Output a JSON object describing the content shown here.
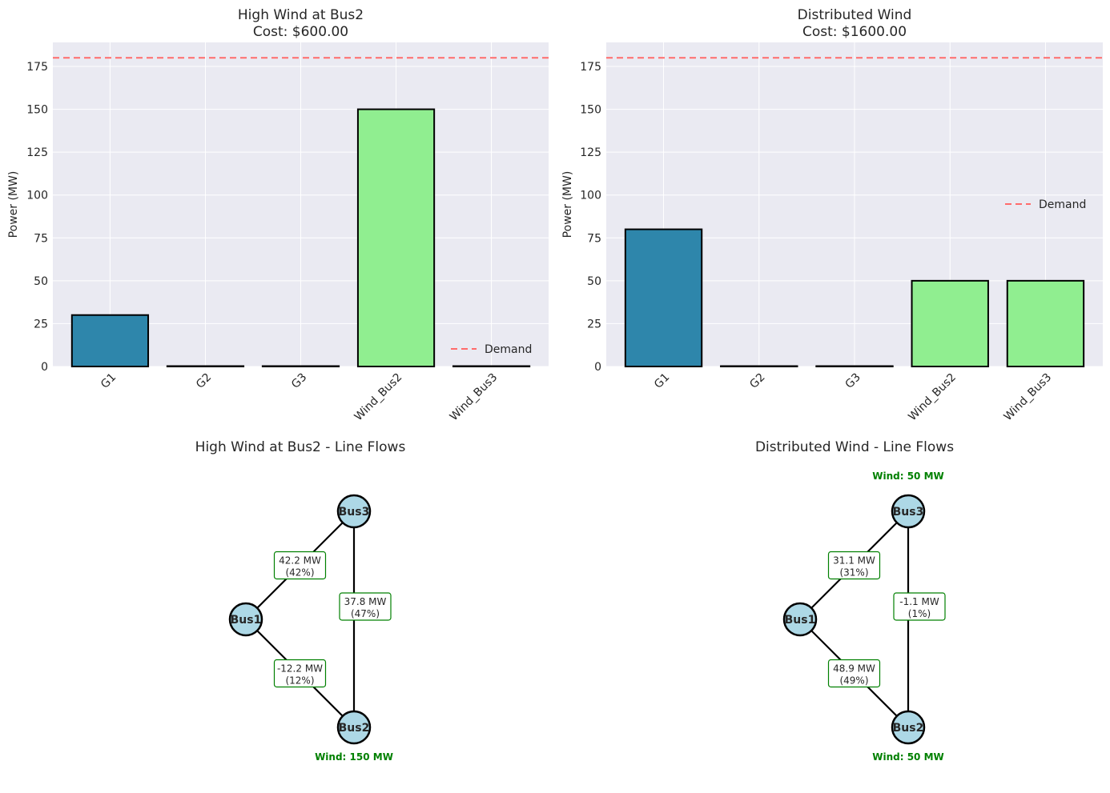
{
  "chart_data": [
    {
      "type": "bar",
      "title": "High Wind at Bus2",
      "subtitle": "Cost: $600.00",
      "ylabel": "Power (MW)",
      "xlabel": "",
      "categories": [
        "G1",
        "G2",
        "G3",
        "Wind_Bus2",
        "Wind_Bus3"
      ],
      "values": [
        30,
        0,
        0,
        150,
        0
      ],
      "ylim": [
        0,
        189
      ],
      "yticks": [
        0,
        25,
        50,
        75,
        100,
        125,
        150,
        175
      ],
      "demand": 180,
      "legend": {
        "label": "Demand",
        "placement": "lower-right"
      },
      "colors": {
        "generator": "#2e86ab",
        "wind": "#90ee90",
        "demand": "#ff6b6b",
        "background": "#eaeaf2"
      }
    },
    {
      "type": "bar",
      "title": "Distributed Wind",
      "subtitle": "Cost: $1600.00",
      "ylabel": "Power (MW)",
      "xlabel": "",
      "categories": [
        "G1",
        "G2",
        "G3",
        "Wind_Bus2",
        "Wind_Bus3"
      ],
      "values": [
        80,
        0,
        0,
        50,
        50
      ],
      "ylim": [
        0,
        189
      ],
      "yticks": [
        0,
        25,
        50,
        75,
        100,
        125,
        150,
        175
      ],
      "demand": 180,
      "legend": {
        "label": "Demand",
        "placement": "center-right"
      },
      "colors": {
        "generator": "#2e86ab",
        "wind": "#90ee90",
        "demand": "#ff6b6b",
        "background": "#eaeaf2"
      }
    }
  ],
  "networks": [
    {
      "title": "High Wind at Bus2 - Line Flows",
      "buses": [
        "Bus1",
        "Bus2",
        "Bus3"
      ],
      "flows": [
        {
          "from": "Bus1",
          "to": "Bus3",
          "mw": "42.2 MW",
          "pct": "(42%)"
        },
        {
          "from": "Bus3",
          "to": "Bus2",
          "mw": "37.8 MW",
          "pct": "(47%)"
        },
        {
          "from": "Bus1",
          "to": "Bus2",
          "mw": "-12.2 MW",
          "pct": "(12%)"
        }
      ],
      "wind": [
        {
          "bus": "Bus2",
          "label": "Wind: 150 MW"
        }
      ]
    },
    {
      "title": "Distributed Wind - Line Flows",
      "buses": [
        "Bus1",
        "Bus2",
        "Bus3"
      ],
      "flows": [
        {
          "from": "Bus1",
          "to": "Bus3",
          "mw": "31.1 MW",
          "pct": "(31%)"
        },
        {
          "from": "Bus3",
          "to": "Bus2",
          "mw": "-1.1 MW",
          "pct": "(1%)"
        },
        {
          "from": "Bus1",
          "to": "Bus2",
          "mw": "48.9 MW",
          "pct": "(49%)"
        }
      ],
      "wind": [
        {
          "bus": "Bus3",
          "label": "Wind: 50 MW"
        },
        {
          "bus": "Bus2",
          "label": "Wind: 50 MW"
        }
      ]
    }
  ],
  "colors": {
    "node_fill": "#add8e6",
    "flow_box_border": "#008000",
    "wind_text": "#008000"
  }
}
